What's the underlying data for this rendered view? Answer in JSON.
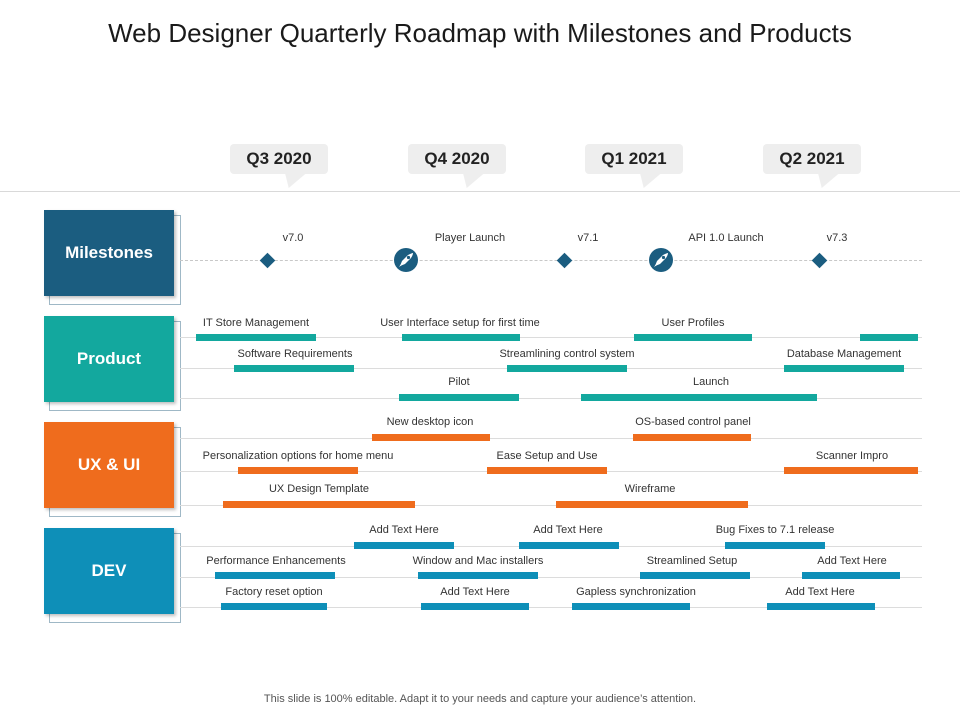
{
  "title": "Web Designer Quarterly Roadmap with Milestones and Products",
  "quarters": [
    "Q3 2020",
    "Q4 2020",
    "Q1 2021",
    "Q2 2021"
  ],
  "categories": {
    "milestones": "Milestones",
    "product": "Product",
    "ux": "UX & UI",
    "dev": "DEV"
  },
  "colors": {
    "milestones": "#1b5d80",
    "product": "#13a89e",
    "ux": "#ef6c1d",
    "dev": "#0e8fb8"
  },
  "milestones": {
    "v70": "v7.0",
    "player": "Player Launch",
    "v71": "v7.1",
    "api": "API 1.0 Launch",
    "v73": "v7.3",
    "icons": [
      "diamond-icon",
      "rocket-icon"
    ]
  },
  "product": {
    "it_store": "IT Store Management",
    "ui_setup": "User Interface setup for first time",
    "user_profiles": "User Profiles",
    "software_req": "Software Requirements",
    "streamlining": "Streamlining control system",
    "database": "Database Management",
    "pilot": "Pilot",
    "launch": "Launch"
  },
  "ux": {
    "new_icon": "New desktop icon",
    "os_panel": "OS-based control panel",
    "personalization": "Personalization options for home menu",
    "ease_setup": "Ease Setup and Use",
    "scanner": "Scanner Impro",
    "ux_template": "UX Design Template",
    "wireframe": "Wireframe"
  },
  "dev": {
    "add1": "Add Text Here",
    "add2": "Add Text Here",
    "bug_fixes": "Bug Fixes to 7.1 release",
    "perf": "Performance Enhancements",
    "window_mac": "Window and Mac installers",
    "streamlined": "Streamlined Setup",
    "add3": "Add Text Here",
    "factory": "Factory reset option",
    "add4": "Add Text Here",
    "gapless": "Gapless synchronization",
    "add5": "Add Text Here"
  },
  "footer": "This slide is 100% editable. Adapt it to your needs and capture your audience’s attention."
}
